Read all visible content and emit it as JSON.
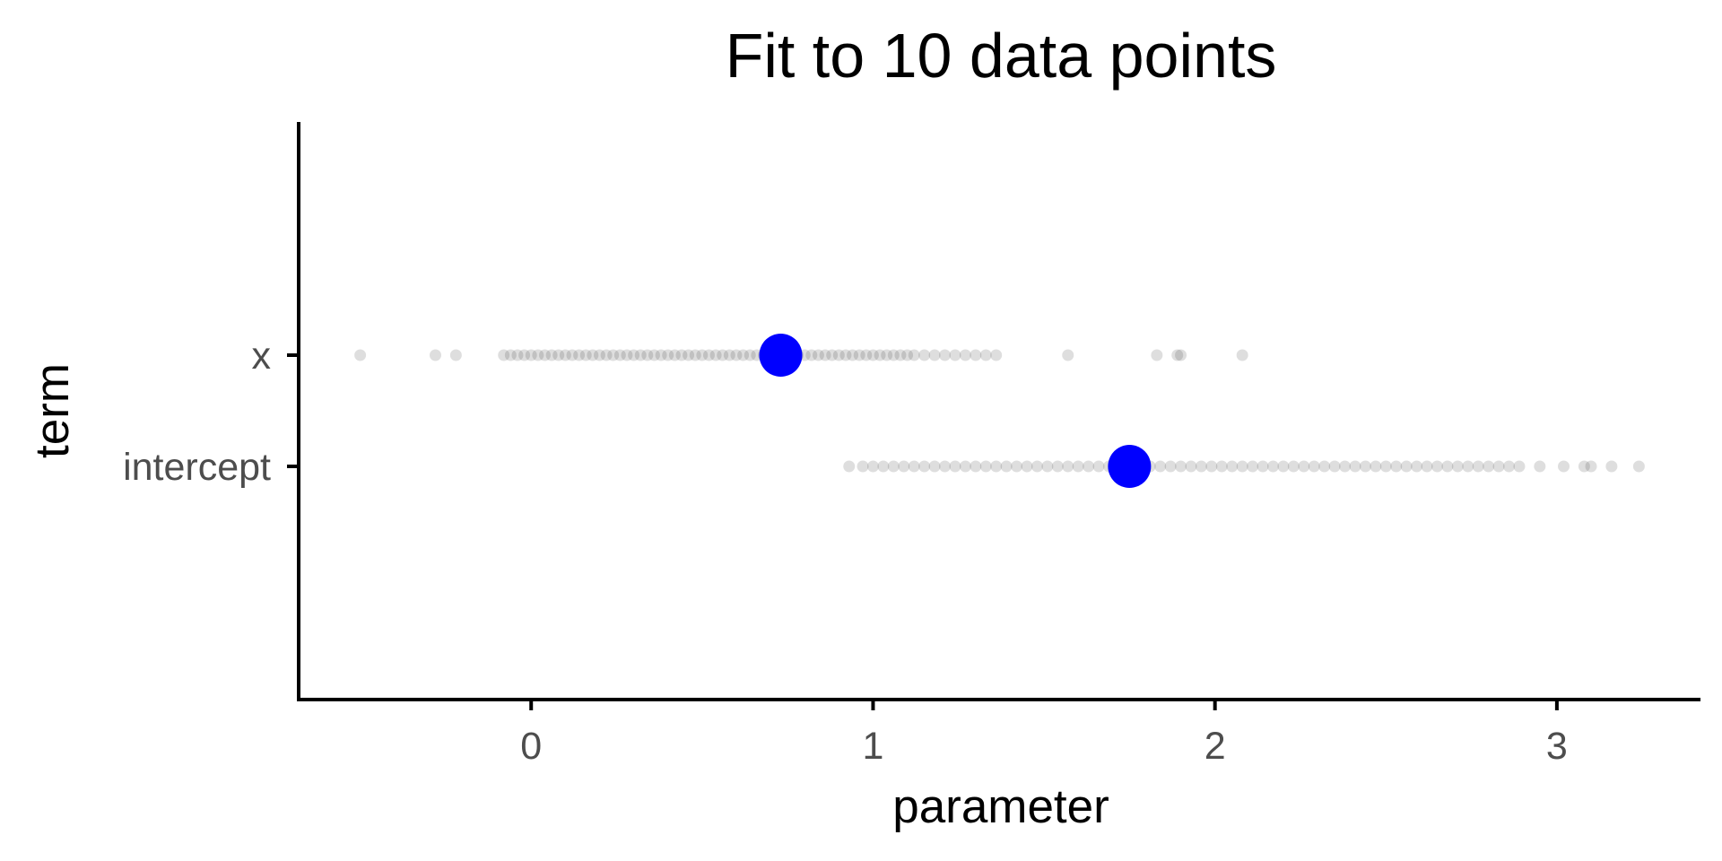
{
  "chart_data": {
    "type": "scatter",
    "title": "Fit to 10 data points",
    "xlabel": "parameter",
    "ylabel": "term",
    "x_ticks": [
      0,
      1,
      2,
      3
    ],
    "xlim": [
      -0.68,
      3.42
    ],
    "categories": [
      "x",
      "intercept"
    ],
    "grid": false,
    "legend": "none",
    "colors": {
      "estimate": "#0000ff",
      "draws": "#000000",
      "axis": "#000000"
    },
    "series": [
      {
        "name": "x",
        "estimate": 0.73,
        "draws": [
          -0.5,
          -0.28,
          -0.22,
          -0.08,
          -0.06,
          -0.04,
          -0.02,
          0.0,
          0.02,
          0.04,
          0.06,
          0.08,
          0.1,
          0.12,
          0.14,
          0.16,
          0.18,
          0.2,
          0.22,
          0.24,
          0.26,
          0.28,
          0.3,
          0.32,
          0.34,
          0.36,
          0.38,
          0.4,
          0.42,
          0.44,
          0.46,
          0.48,
          0.5,
          0.52,
          0.54,
          0.56,
          0.58,
          0.6,
          0.62,
          0.64,
          0.66,
          0.68,
          0.7,
          0.72,
          0.74,
          0.76,
          0.78,
          0.8,
          0.82,
          0.84,
          0.86,
          0.88,
          0.9,
          0.92,
          0.94,
          0.96,
          0.98,
          1.0,
          1.02,
          1.04,
          1.06,
          1.08,
          1.1,
          1.12,
          1.15,
          1.18,
          1.21,
          1.24,
          1.27,
          1.3,
          1.33,
          1.36,
          1.57,
          1.83,
          1.89,
          1.9,
          2.08
        ]
      },
      {
        "name": "intercept",
        "estimate": 1.75,
        "draws": [
          0.93,
          0.97,
          1.0,
          1.03,
          1.06,
          1.09,
          1.12,
          1.15,
          1.18,
          1.21,
          1.24,
          1.27,
          1.3,
          1.33,
          1.36,
          1.39,
          1.42,
          1.45,
          1.48,
          1.51,
          1.54,
          1.57,
          1.6,
          1.63,
          1.66,
          1.69,
          1.72,
          1.75,
          1.78,
          1.81,
          1.84,
          1.87,
          1.9,
          1.93,
          1.96,
          1.99,
          2.02,
          2.05,
          2.08,
          2.11,
          2.14,
          2.17,
          2.2,
          2.23,
          2.26,
          2.29,
          2.32,
          2.35,
          2.38,
          2.41,
          2.44,
          2.47,
          2.5,
          2.53,
          2.56,
          2.59,
          2.62,
          2.65,
          2.68,
          2.71,
          2.74,
          2.77,
          2.8,
          2.83,
          2.86,
          2.89,
          2.95,
          3.02,
          3.08,
          3.1,
          3.16,
          3.24
        ]
      }
    ]
  }
}
